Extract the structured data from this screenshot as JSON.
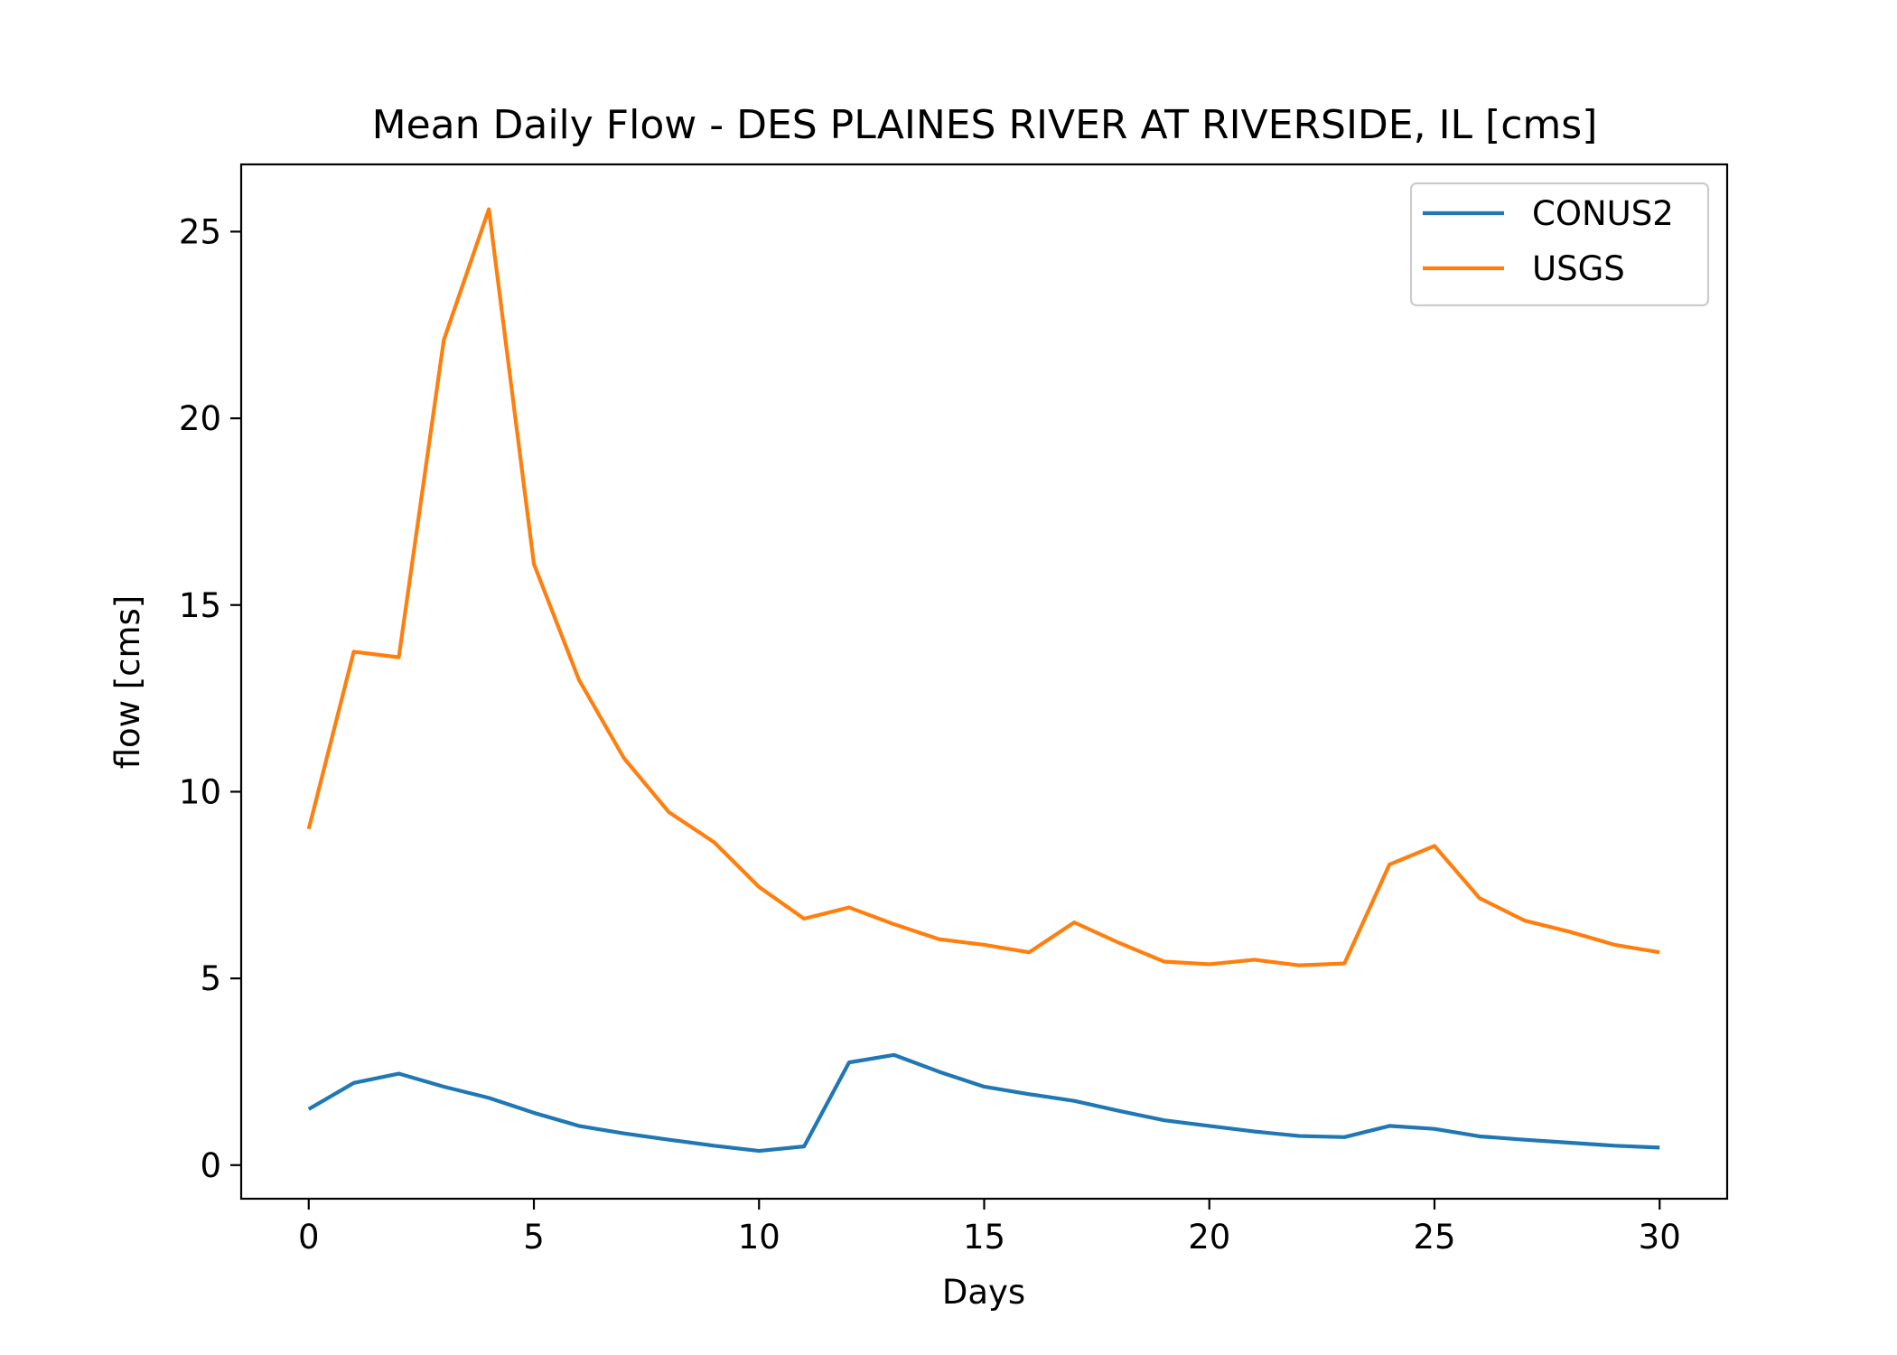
{
  "chart_data": {
    "type": "line",
    "title": "Mean Daily Flow - DES PLAINES RIVER AT RIVERSIDE, IL [cms]",
    "xlabel": "Days",
    "ylabel": "flow [cms]",
    "xlim": [
      -1.5,
      31.5
    ],
    "ylim": [
      -0.9,
      26.8
    ],
    "xticks": [
      0,
      5,
      10,
      15,
      20,
      25,
      30
    ],
    "yticks": [
      0,
      5,
      10,
      15,
      20,
      25
    ],
    "grid": false,
    "legend_position": "top-right",
    "x": [
      0,
      1,
      2,
      3,
      4,
      5,
      6,
      7,
      8,
      9,
      10,
      11,
      12,
      13,
      14,
      15,
      16,
      17,
      18,
      19,
      20,
      21,
      22,
      23,
      24,
      25,
      26,
      27,
      28,
      29,
      30
    ],
    "series": [
      {
        "name": "CONUS2",
        "color": "#1f77b4",
        "values": [
          1.5,
          2.2,
          2.45,
          2.1,
          1.8,
          1.4,
          1.05,
          0.85,
          0.68,
          0.52,
          0.38,
          0.5,
          2.75,
          2.95,
          2.5,
          2.1,
          1.9,
          1.72,
          1.45,
          1.2,
          1.05,
          0.9,
          0.78,
          0.75,
          1.05,
          0.97,
          0.77,
          0.68,
          0.6,
          0.52,
          0.47
        ]
      },
      {
        "name": "USGS",
        "color": "#ff7f0e",
        "values": [
          9.0,
          13.75,
          13.6,
          22.1,
          25.6,
          16.1,
          13.0,
          10.9,
          9.45,
          8.65,
          7.45,
          6.6,
          6.9,
          6.45,
          6.05,
          5.9,
          5.7,
          6.5,
          5.95,
          5.45,
          5.38,
          5.5,
          5.35,
          5.4,
          8.05,
          8.55,
          7.15,
          6.55,
          6.25,
          5.9,
          5.7
        ]
      }
    ]
  }
}
